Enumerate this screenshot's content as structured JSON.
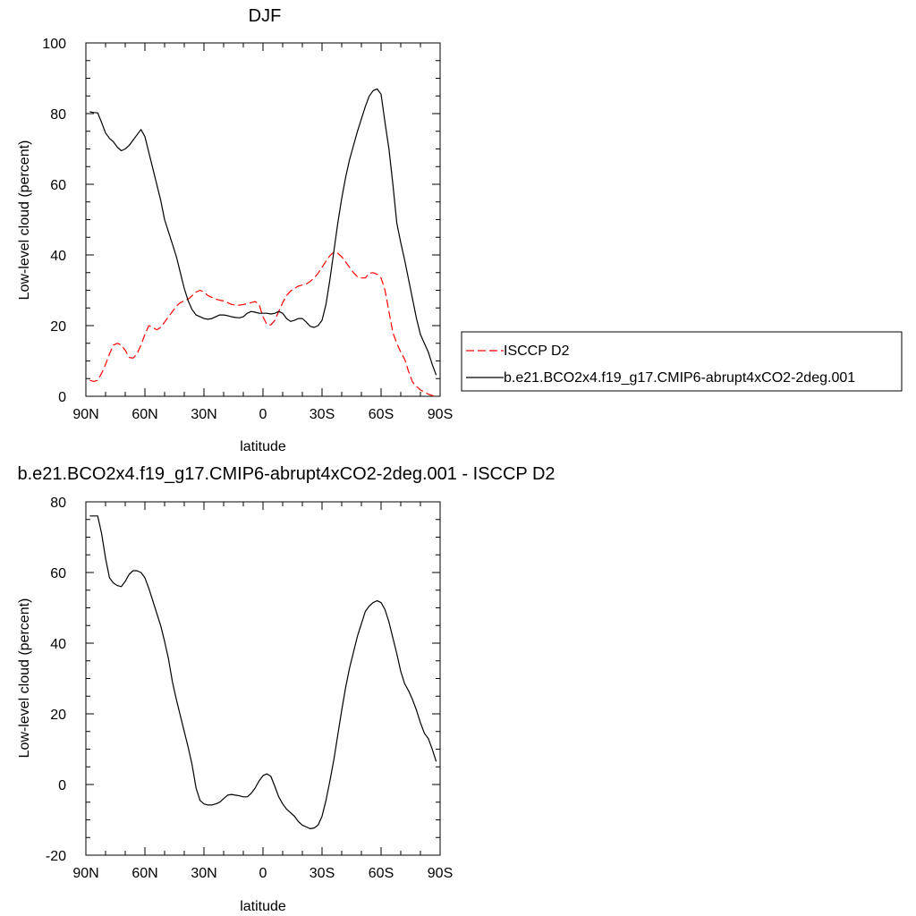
{
  "chart_data": [
    {
      "type": "line",
      "title": "DJF",
      "xlabel": "latitude",
      "ylabel": "Low-level cloud (percent)",
      "xlim": [
        90,
        -90
      ],
      "ylim": [
        0,
        100
      ],
      "xticks": [
        90,
        60,
        30,
        0,
        -30,
        -60,
        -90
      ],
      "xtick_labels": [
        "90N",
        "60N",
        "30N",
        "0",
        "30S",
        "60S",
        "90S"
      ],
      "yticks": [
        0,
        20,
        40,
        60,
        80,
        100
      ],
      "ytick_labels": [
        "0",
        "20",
        "40",
        "60",
        "80",
        "100"
      ],
      "legend_position": "right",
      "series": [
        {
          "name": "ISCCP D2",
          "color": "#ff0000",
          "style": "dashed",
          "x": [
            88,
            86,
            84,
            82,
            80,
            78,
            76,
            74,
            72,
            70,
            68,
            66,
            64,
            62,
            60,
            58,
            56,
            54,
            52,
            50,
            48,
            46,
            44,
            42,
            40,
            38,
            36,
            34,
            32,
            30,
            28,
            26,
            24,
            22,
            20,
            18,
            16,
            14,
            12,
            10,
            8,
            6,
            4,
            2,
            0,
            -2,
            -4,
            -6,
            -8,
            -10,
            -12,
            -14,
            -16,
            -18,
            -20,
            -22,
            -24,
            -26,
            -28,
            -30,
            -32,
            -34,
            -36,
            -38,
            -40,
            -42,
            -44,
            -46,
            -48,
            -50,
            -52,
            -54,
            -56,
            -58,
            -60,
            -62,
            -64,
            -66,
            -68,
            -70,
            -72,
            -74,
            -76,
            -78,
            -80,
            -82,
            -84,
            -86,
            -88
          ],
          "y": [
            4.5,
            4.2,
            4.5,
            6.5,
            9,
            12,
            14.5,
            15,
            14.5,
            13,
            11,
            10.8,
            12,
            14.5,
            17.5,
            20,
            19.5,
            18.8,
            19.5,
            21,
            22.5,
            24,
            25.5,
            26.5,
            27,
            27.5,
            28.5,
            29.5,
            30,
            29.5,
            28.5,
            28,
            27.5,
            27.2,
            27,
            26.5,
            26,
            25.8,
            25.8,
            26,
            26.2,
            26.5,
            26.8,
            26,
            22.5,
            20.3,
            20.2,
            21.5,
            24,
            26.5,
            28.5,
            29.8,
            30.5,
            31.2,
            31.5,
            31.8,
            32.5,
            33.5,
            34.8,
            36.5,
            38.2,
            39.8,
            40.8,
            40.5,
            39.5,
            38,
            36.5,
            35,
            33.8,
            33.5,
            33.5,
            34.8,
            35,
            34.5,
            33.5,
            30,
            24,
            18,
            15,
            12.5,
            10.5,
            7,
            4,
            2.8,
            1.8,
            1.2,
            0.6,
            0.2,
            0
          ],
          "x_note": "",
          "_": ""
        },
        {
          "name": "b.e21.BCO2x4.f19_g17.CMIP6-abrupt4xCO2-2deg.001",
          "color": "#000000",
          "style": "solid",
          "x": [
            88,
            86,
            84,
            82,
            80,
            78,
            76,
            74,
            72,
            70,
            68,
            66,
            64,
            62,
            60,
            58,
            56,
            54,
            52,
            50,
            48,
            46,
            44,
            42,
            40,
            38,
            36,
            34,
            32,
            30,
            28,
            26,
            24,
            22,
            20,
            18,
            16,
            14,
            12,
            10,
            8,
            6,
            4,
            2,
            0,
            -2,
            -4,
            -6,
            -8,
            -10,
            -12,
            -14,
            -16,
            -18,
            -20,
            -22,
            -24,
            -26,
            -28,
            -30,
            -32,
            -34,
            -36,
            -38,
            -40,
            -42,
            -44,
            -46,
            -48,
            -50,
            -52,
            -54,
            -56,
            -58,
            -60,
            -62,
            -64,
            -66,
            -68,
            -70,
            -72,
            -74,
            -76,
            -78,
            -80,
            -82,
            -84,
            -86,
            -88
          ],
          "y": [
            80.5,
            80.3,
            80.2,
            77.5,
            74.5,
            73,
            72,
            70.5,
            69.5,
            70,
            71,
            72.5,
            74,
            75.5,
            73.5,
            69,
            64.5,
            60,
            55.5,
            50,
            46.5,
            43,
            39.5,
            35,
            30.5,
            27,
            24.5,
            23,
            22.5,
            22,
            21.8,
            22,
            22.5,
            23,
            23,
            22.8,
            22.5,
            22.3,
            22.2,
            22.5,
            23.5,
            24,
            23.8,
            23.5,
            23.5,
            23.5,
            23.3,
            23.5,
            24,
            23.5,
            22,
            21.2,
            21.5,
            22,
            22,
            21,
            19.8,
            19.5,
            20,
            21.5,
            26,
            33,
            41,
            49,
            56,
            62,
            67,
            71,
            75,
            78.5,
            82,
            85,
            86.5,
            87,
            85.5,
            77.5,
            70,
            60,
            49,
            43.5,
            38.5,
            33,
            27.5,
            22,
            17.5,
            15,
            12.5,
            9,
            6
          ]
        }
      ]
    },
    {
      "type": "line",
      "title": "b.e21.BCO2x4.f19_g17.CMIP6-abrupt4xCO2-2deg.001 - ISCCP D2",
      "xlabel": "latitude",
      "ylabel": "Low-level cloud (percent)",
      "xlim": [
        90,
        -90
      ],
      "ylim": [
        -20,
        80
      ],
      "xticks": [
        90,
        60,
        30,
        0,
        -30,
        -60,
        -90
      ],
      "xtick_labels": [
        "90N",
        "60N",
        "30N",
        "0",
        "30S",
        "60S",
        "90S"
      ],
      "yticks": [
        -20,
        0,
        20,
        40,
        60,
        80
      ],
      "ytick_labels": [
        "-20",
        "0",
        "20",
        "40",
        "60",
        "80"
      ],
      "series": [
        {
          "color": "#000000",
          "style": "solid",
          "x": [
            88,
            86,
            84,
            82,
            80,
            78,
            76,
            74,
            72,
            70,
            68,
            66,
            64,
            62,
            60,
            58,
            56,
            54,
            52,
            50,
            48,
            46,
            44,
            42,
            40,
            38,
            36,
            34,
            32,
            30,
            28,
            26,
            24,
            22,
            20,
            18,
            16,
            14,
            12,
            10,
            8,
            6,
            4,
            2,
            0,
            -2,
            -4,
            -6,
            -8,
            -10,
            -12,
            -14,
            -16,
            -18,
            -20,
            -22,
            -24,
            -26,
            -28,
            -30,
            -32,
            -34,
            -36,
            -38,
            -40,
            -42,
            -44,
            -46,
            -48,
            -50,
            -52,
            -54,
            -56,
            -58,
            -60,
            -62,
            -64,
            -66,
            -68,
            -70,
            -72,
            -74,
            -76,
            -78,
            -80,
            -82,
            -84,
            -86,
            -88
          ],
          "y": [
            76,
            76,
            76,
            71,
            64,
            58.5,
            57,
            56.3,
            56,
            57.5,
            59.5,
            60.5,
            60.5,
            60,
            58.5,
            55.5,
            52,
            48.5,
            45,
            40.5,
            35.5,
            29,
            24,
            19.5,
            15,
            10.5,
            5.5,
            -1,
            -4.5,
            -5.5,
            -5.8,
            -5.8,
            -5.5,
            -5,
            -4,
            -3,
            -2.8,
            -3,
            -3.2,
            -3.5,
            -3.5,
            -2.5,
            -1,
            1,
            2.5,
            3,
            2.3,
            -0.5,
            -3.5,
            -5.5,
            -7,
            -8,
            -9,
            -10.5,
            -11.5,
            -12,
            -12.5,
            -12.3,
            -11.5,
            -9,
            -4.5,
            1,
            7,
            14,
            21,
            27.5,
            33,
            37.5,
            42,
            45.5,
            49,
            50.5,
            51.5,
            52,
            51.5,
            49.5,
            46,
            41.5,
            37,
            32,
            28.5,
            26.5,
            24,
            21,
            17.5,
            14.5,
            13,
            10,
            6.5
          ]
        }
      ]
    }
  ]
}
